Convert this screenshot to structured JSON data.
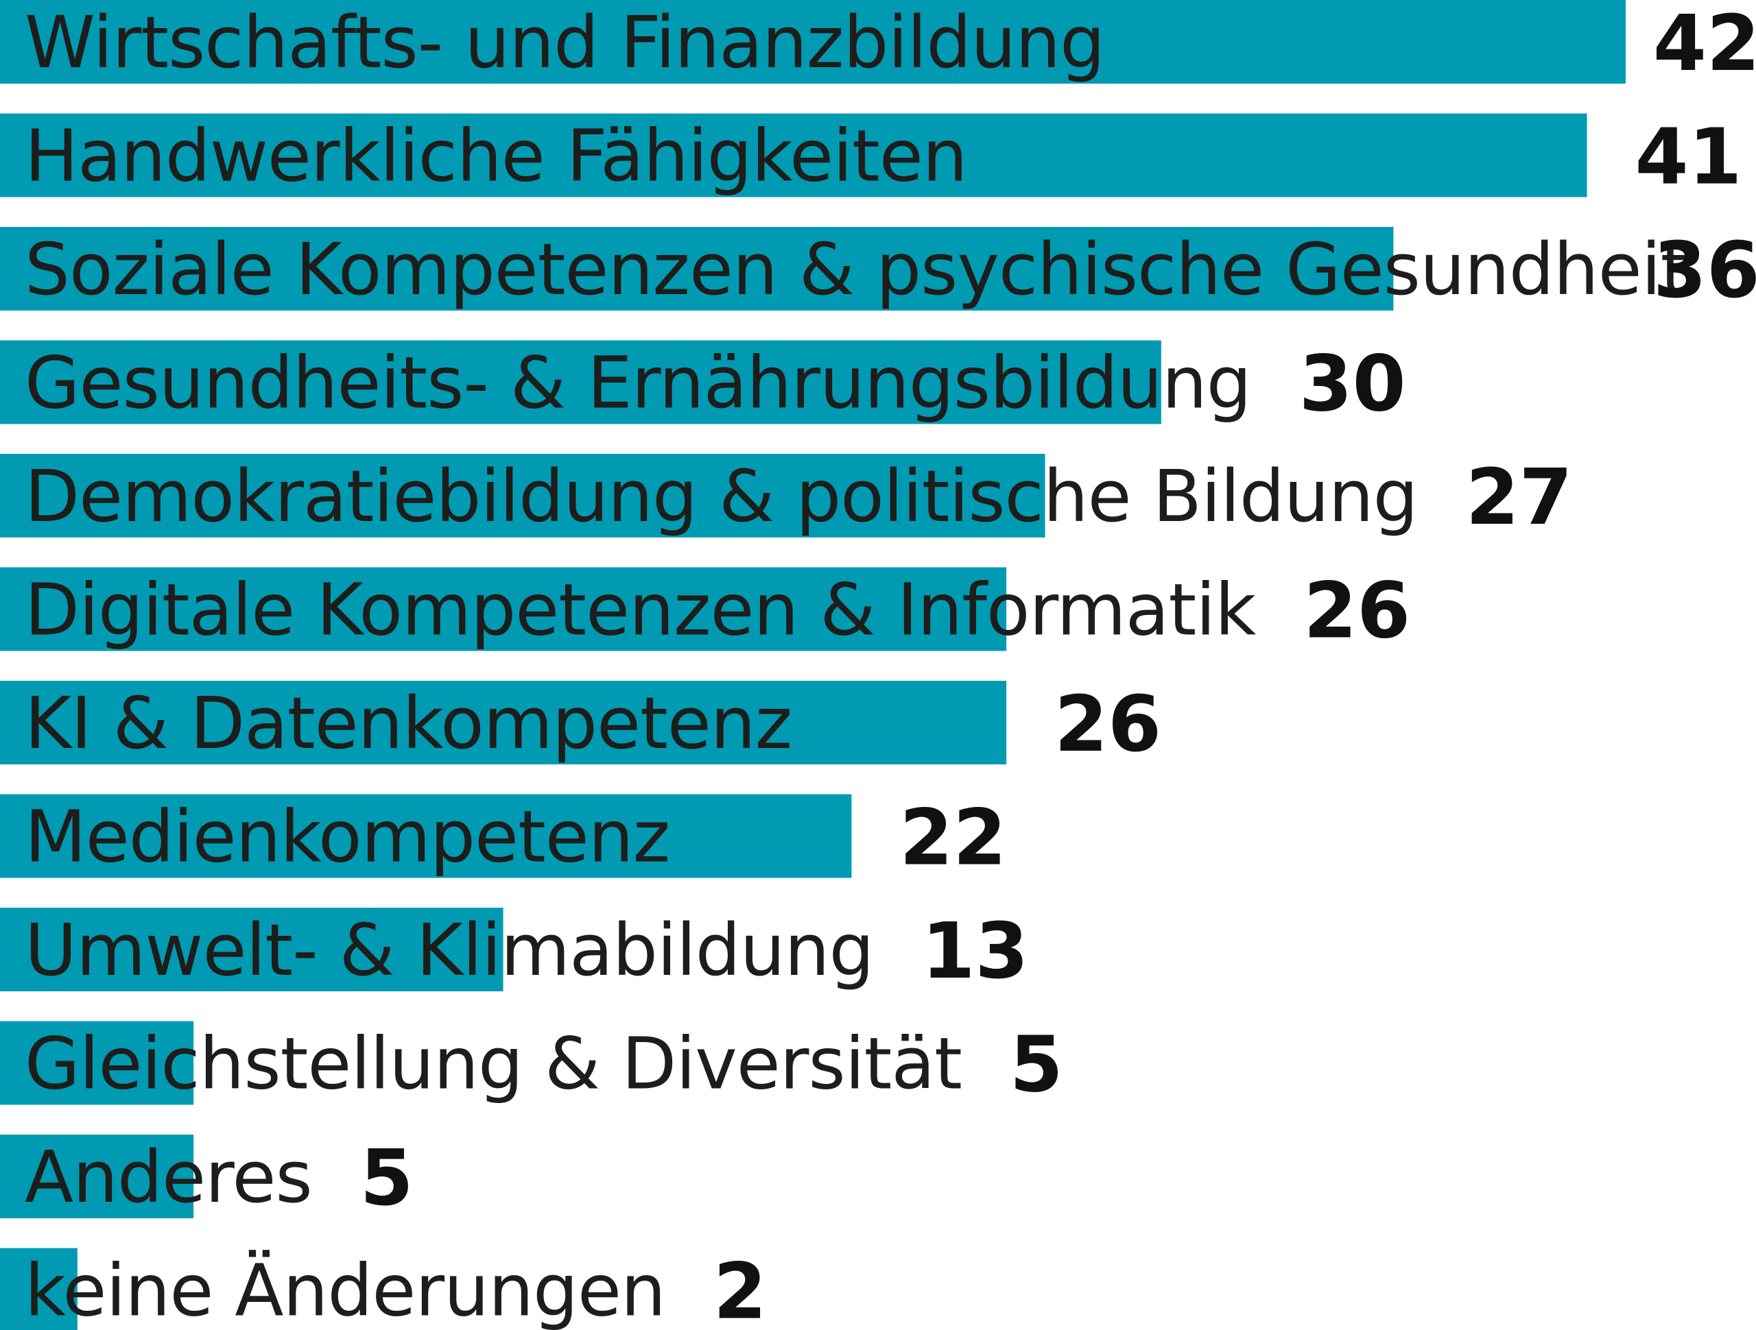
{
  "colors": {
    "bar": "#009bb2",
    "label_text": "#1d1d1b",
    "value_text": "#111111",
    "background": "#ffffff"
  },
  "chart_data": {
    "type": "bar",
    "orientation": "horizontal",
    "categories": [
      "Wirtschafts- und Finanzbildung",
      "Handwerkliche Fähigkeiten",
      "Soziale Kompetenzen & psychische Gesundheit",
      "Gesundheits- & Ernährungsbildung",
      "Demokratiebildung & politische Bildung",
      "Digitale Kompetenzen & Informatik",
      "KI & Datenkompetenz",
      "Medienkompetenz",
      "Umwelt- & Klimabildung",
      "Gleichstellung & Diversität",
      "Anderes",
      "keine Änderungen"
    ],
    "values": [
      42,
      41,
      36,
      30,
      27,
      26,
      26,
      22,
      13,
      5,
      5,
      2
    ],
    "value_labels": [
      "42",
      "41",
      "36",
      "30",
      "27",
      "26",
      "26",
      "22",
      "13",
      "5",
      "5",
      "2"
    ],
    "xlim": [
      0,
      42
    ],
    "grid": false,
    "legend": false
  }
}
